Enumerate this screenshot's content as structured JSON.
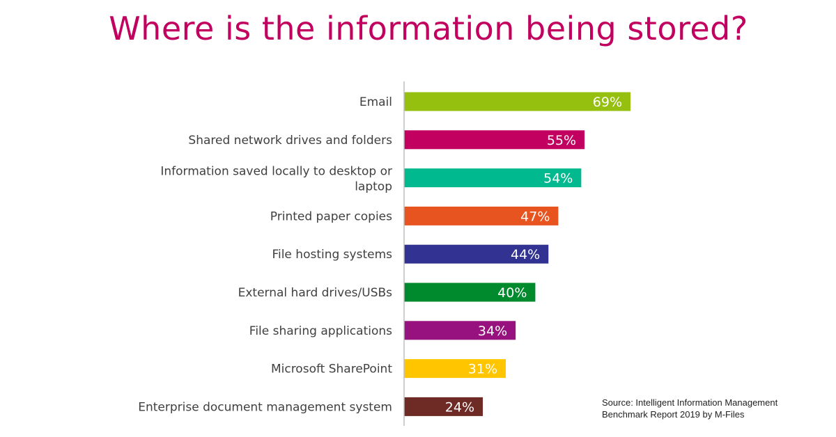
{
  "title": "Where is the information being stored?",
  "source": {
    "line1": "Source: Intelligent Information Management",
    "line2": "Benchmark Report 2019 by M-Files"
  },
  "chart_data": {
    "type": "bar",
    "orientation": "horizontal",
    "title": "Where is the information being stored?",
    "categories": [
      [
        "Email"
      ],
      [
        "Shared network drives and folders"
      ],
      [
        "Information saved locally to desktop or",
        "laptop"
      ],
      [
        "Printed paper copies"
      ],
      [
        "File hosting systems"
      ],
      [
        "External hard drives/USBs"
      ],
      [
        "File sharing applications"
      ],
      [
        "Microsoft SharePoint"
      ],
      [
        "Enterprise document management system"
      ]
    ],
    "values": [
      69,
      55,
      54,
      47,
      44,
      40,
      34,
      31,
      24
    ],
    "data_labels": [
      "69%",
      "55%",
      "54%",
      "47%",
      "44%",
      "40%",
      "34%",
      "31%",
      "24%"
    ],
    "unit": "%",
    "colors": [
      "#95c00f",
      "#c2005f",
      "#00b98e",
      "#e85420",
      "#313291",
      "#008a2e",
      "#97127f",
      "#ffc600",
      "#6e2a24"
    ],
    "axis_color": "#bfbfbf",
    "grid": false,
    "legend": "none"
  }
}
